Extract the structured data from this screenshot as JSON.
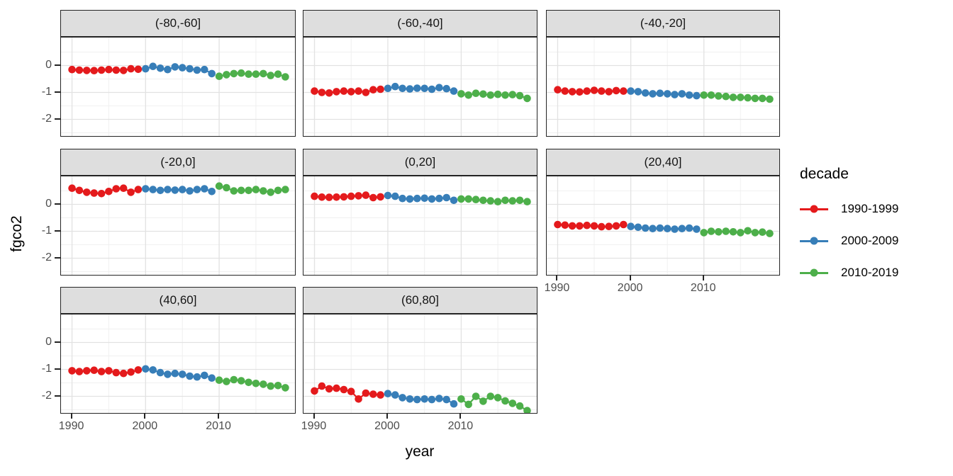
{
  "chart_data": {
    "type": "line",
    "title": "",
    "xlabel": "year",
    "ylabel": "fgco2",
    "grid": true,
    "x_range": [
      1988.5,
      2020.5
    ],
    "y_range": [
      -2.67,
      1.04
    ],
    "x_ticks": [
      "1990",
      "2000",
      "2010"
    ],
    "x_tick_years": [
      1990,
      2000,
      2010
    ],
    "x_minor": [
      1995,
      2005,
      2015
    ],
    "y_ticks": [
      "0",
      "-1",
      "-2"
    ],
    "y_tick_values": [
      0,
      -1,
      -2
    ],
    "y_minor": [
      0.5,
      -0.5,
      -1.5,
      -2.5
    ],
    "palette": {
      "red": "#E41A1C",
      "blue": "#377EB8",
      "green": "#4DAF4A"
    },
    "legend": {
      "title": "decade",
      "position": "right",
      "entries": [
        {
          "label": "1990-1999",
          "color": "#E41A1C"
        },
        {
          "label": "2000-2009",
          "color": "#377EB8"
        },
        {
          "label": "2010-2019",
          "color": "#4DAF4A"
        }
      ]
    },
    "facets": [
      {
        "label": "(-80,-60]",
        "row": 0,
        "col": 0,
        "series": [
          {
            "name": "1990-1999",
            "color": "#E41A1C",
            "start_year": 1990,
            "values": [
              -0.15,
              -0.17,
              -0.18,
              -0.19,
              -0.17,
              -0.15,
              -0.17,
              -0.18,
              -0.12,
              -0.14
            ]
          },
          {
            "name": "2000-2009",
            "color": "#377EB8",
            "start_year": 2000,
            "values": [
              -0.12,
              -0.03,
              -0.1,
              -0.15,
              -0.05,
              -0.08,
              -0.12,
              -0.17,
              -0.15,
              -0.3
            ]
          },
          {
            "name": "2010-2019",
            "color": "#4DAF4A",
            "start_year": 2010,
            "values": [
              -0.4,
              -0.34,
              -0.3,
              -0.28,
              -0.32,
              -0.32,
              -0.3,
              -0.37,
              -0.32,
              -0.42
            ]
          }
        ]
      },
      {
        "label": "(-60,-40]",
        "row": 0,
        "col": 1,
        "series": [
          {
            "name": "1990-1999",
            "color": "#E41A1C",
            "start_year": 1990,
            "values": [
              -0.95,
              -1.0,
              -1.02,
              -0.97,
              -0.95,
              -0.97,
              -0.95,
              -1.0,
              -0.9,
              -0.88
            ]
          },
          {
            "name": "2000-2009",
            "color": "#377EB8",
            "start_year": 2000,
            "values": [
              -0.85,
              -0.78,
              -0.85,
              -0.87,
              -0.84,
              -0.85,
              -0.88,
              -0.82,
              -0.86,
              -0.95
            ]
          },
          {
            "name": "2010-2019",
            "color": "#4DAF4A",
            "start_year": 2010,
            "values": [
              -1.05,
              -1.1,
              -1.03,
              -1.06,
              -1.1,
              -1.07,
              -1.1,
              -1.08,
              -1.12,
              -1.22
            ]
          }
        ]
      },
      {
        "label": "(-40,-20]",
        "row": 0,
        "col": 2,
        "series": [
          {
            "name": "1990-1999",
            "color": "#E41A1C",
            "start_year": 1990,
            "values": [
              -0.9,
              -0.95,
              -0.97,
              -0.98,
              -0.95,
              -0.92,
              -0.95,
              -0.97,
              -0.93,
              -0.95
            ]
          },
          {
            "name": "2000-2009",
            "color": "#377EB8",
            "start_year": 2000,
            "values": [
              -0.95,
              -0.97,
              -1.02,
              -1.05,
              -1.03,
              -1.05,
              -1.08,
              -1.05,
              -1.1,
              -1.12
            ]
          },
          {
            "name": "2010-2019",
            "color": "#4DAF4A",
            "start_year": 2010,
            "values": [
              -1.1,
              -1.1,
              -1.13,
              -1.15,
              -1.18,
              -1.18,
              -1.2,
              -1.22,
              -1.22,
              -1.25
            ]
          }
        ]
      },
      {
        "label": "(-20,0]",
        "row": 1,
        "col": 0,
        "series": [
          {
            "name": "1990-1999",
            "color": "#E41A1C",
            "start_year": 1990,
            "values": [
              0.6,
              0.52,
              0.45,
              0.42,
              0.4,
              0.48,
              0.58,
              0.6,
              0.45,
              0.55
            ]
          },
          {
            "name": "2000-2009",
            "color": "#377EB8",
            "start_year": 2000,
            "values": [
              0.58,
              0.55,
              0.52,
              0.55,
              0.53,
              0.55,
              0.5,
              0.55,
              0.58,
              0.48
            ]
          },
          {
            "name": "2010-2019",
            "color": "#4DAF4A",
            "start_year": 2010,
            "values": [
              0.68,
              0.62,
              0.5,
              0.52,
              0.52,
              0.55,
              0.5,
              0.45,
              0.52,
              0.55
            ]
          }
        ]
      },
      {
        "label": "(0,20]",
        "row": 1,
        "col": 1,
        "series": [
          {
            "name": "1990-1999",
            "color": "#E41A1C",
            "start_year": 1990,
            "values": [
              0.3,
              0.27,
              0.26,
              0.27,
              0.28,
              0.3,
              0.32,
              0.34,
              0.25,
              0.28
            ]
          },
          {
            "name": "2000-2009",
            "color": "#377EB8",
            "start_year": 2000,
            "values": [
              0.33,
              0.3,
              0.22,
              0.2,
              0.22,
              0.23,
              0.2,
              0.22,
              0.25,
              0.15
            ]
          },
          {
            "name": "2010-2019",
            "color": "#4DAF4A",
            "start_year": 2010,
            "values": [
              0.2,
              0.2,
              0.18,
              0.15,
              0.13,
              0.1,
              0.15,
              0.13,
              0.15,
              0.1
            ]
          }
        ]
      },
      {
        "label": "(20,40]",
        "row": 1,
        "col": 2,
        "series": [
          {
            "name": "1990-1999",
            "color": "#E41A1C",
            "start_year": 1990,
            "values": [
              -0.75,
              -0.77,
              -0.8,
              -0.8,
              -0.78,
              -0.8,
              -0.83,
              -0.82,
              -0.8,
              -0.75
            ]
          },
          {
            "name": "2000-2009",
            "color": "#377EB8",
            "start_year": 2000,
            "values": [
              -0.82,
              -0.85,
              -0.88,
              -0.9,
              -0.88,
              -0.9,
              -0.92,
              -0.9,
              -0.88,
              -0.92
            ]
          },
          {
            "name": "2010-2019",
            "color": "#4DAF4A",
            "start_year": 2010,
            "values": [
              -1.05,
              -1.0,
              -1.02,
              -1.0,
              -1.02,
              -1.05,
              -0.98,
              -1.05,
              -1.03,
              -1.08
            ]
          }
        ]
      },
      {
        "label": "(40,60]",
        "row": 2,
        "col": 0,
        "series": [
          {
            "name": "1990-1999",
            "color": "#E41A1C",
            "start_year": 1990,
            "values": [
              -1.05,
              -1.08,
              -1.05,
              -1.03,
              -1.08,
              -1.05,
              -1.12,
              -1.15,
              -1.1,
              -1.02
            ]
          },
          {
            "name": "2000-2009",
            "color": "#377EB8",
            "start_year": 2000,
            "values": [
              -0.98,
              -1.02,
              -1.12,
              -1.18,
              -1.15,
              -1.18,
              -1.25,
              -1.28,
              -1.22,
              -1.32
            ]
          },
          {
            "name": "2010-2019",
            "color": "#4DAF4A",
            "start_year": 2010,
            "values": [
              -1.4,
              -1.45,
              -1.38,
              -1.42,
              -1.48,
              -1.52,
              -1.55,
              -1.62,
              -1.6,
              -1.68
            ]
          }
        ]
      },
      {
        "label": "(60,80]",
        "row": 2,
        "col": 1,
        "series": [
          {
            "name": "1990-1999",
            "color": "#E41A1C",
            "start_year": 1990,
            "values": [
              -1.8,
              -1.62,
              -1.72,
              -1.7,
              -1.75,
              -1.82,
              -2.1,
              -1.88,
              -1.92,
              -1.95
            ]
          },
          {
            "name": "2000-2009",
            "color": "#377EB8",
            "start_year": 2000,
            "values": [
              -1.9,
              -1.95,
              -2.05,
              -2.1,
              -2.12,
              -2.1,
              -2.12,
              -2.08,
              -2.12,
              -2.28
            ]
          },
          {
            "name": "2010-2019",
            "color": "#4DAF4A",
            "start_year": 2010,
            "values": [
              -2.1,
              -2.3,
              -2.0,
              -2.18,
              -2.0,
              -2.05,
              -2.17,
              -2.26,
              -2.36,
              -2.53
            ]
          }
        ]
      }
    ]
  }
}
